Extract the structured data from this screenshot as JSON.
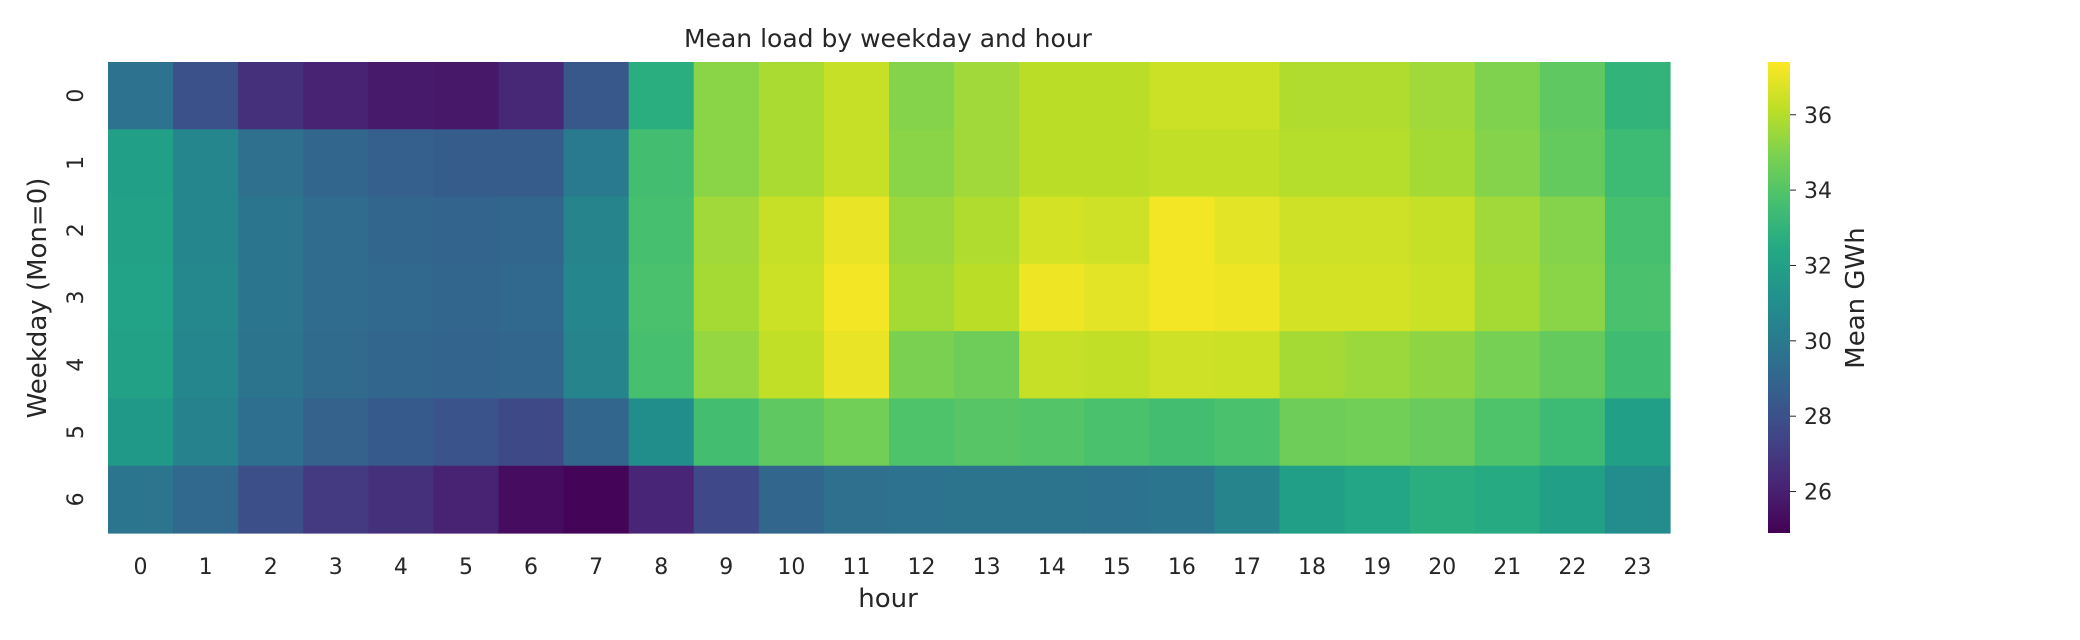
{
  "chart_data": {
    "type": "heatmap",
    "title": "Mean load by weekday and hour",
    "xlabel": "hour",
    "ylabel": "Weekday (Mon=0)",
    "x": [
      "0",
      "1",
      "2",
      "3",
      "4",
      "5",
      "6",
      "7",
      "8",
      "9",
      "10",
      "11",
      "12",
      "13",
      "14",
      "15",
      "16",
      "17",
      "18",
      "19",
      "20",
      "21",
      "22",
      "23"
    ],
    "y": [
      "0",
      "1",
      "2",
      "3",
      "4",
      "5",
      "6"
    ],
    "values": [
      [
        29.6,
        28.0,
        26.6,
        26.1,
        25.8,
        25.7,
        26.3,
        28.3,
        32.7,
        35.2,
        35.8,
        36.3,
        35.1,
        35.6,
        36.1,
        36.1,
        36.4,
        36.4,
        35.9,
        35.9,
        35.6,
        35.0,
        34.3,
        33.0
      ],
      [
        31.9,
        30.6,
        29.5,
        29.0,
        28.7,
        28.5,
        28.5,
        30.0,
        33.6,
        35.2,
        35.8,
        36.3,
        35.2,
        35.6,
        36.1,
        36.1,
        36.2,
        36.2,
        36.0,
        36.0,
        35.7,
        35.1,
        34.4,
        33.4
      ],
      [
        32.0,
        30.6,
        29.8,
        29.3,
        29.0,
        28.9,
        29.0,
        30.5,
        33.7,
        35.6,
        36.3,
        37.0,
        35.5,
        35.9,
        36.6,
        36.5,
        37.2,
        36.9,
        36.5,
        36.5,
        36.3,
        35.6,
        35.1,
        33.7
      ],
      [
        32.1,
        30.7,
        29.8,
        29.3,
        29.1,
        29.0,
        29.1,
        30.6,
        33.8,
        35.7,
        36.4,
        37.2,
        35.7,
        36.1,
        37.1,
        36.9,
        37.2,
        37.1,
        36.6,
        36.6,
        36.4,
        35.7,
        35.2,
        33.8
      ],
      [
        32.0,
        30.6,
        29.7,
        29.2,
        29.0,
        28.9,
        29.0,
        30.5,
        33.7,
        35.4,
        36.2,
        37.0,
        34.9,
        34.6,
        36.3,
        36.2,
        36.5,
        36.4,
        35.7,
        35.5,
        35.3,
        34.8,
        34.4,
        33.5
      ],
      [
        31.6,
        30.4,
        29.4,
        28.8,
        28.4,
        28.1,
        27.7,
        29.0,
        31.0,
        33.6,
        34.3,
        34.7,
        33.9,
        34.1,
        34.0,
        33.8,
        33.6,
        33.8,
        34.6,
        34.7,
        34.5,
        33.9,
        33.4,
        31.9
      ],
      [
        29.8,
        29.1,
        27.9,
        27.0,
        26.6,
        26.1,
        25.3,
        25.0,
        26.2,
        27.6,
        29.0,
        29.5,
        29.6,
        29.7,
        29.7,
        29.6,
        29.8,
        30.5,
        31.9,
        32.3,
        32.7,
        32.5,
        31.9,
        30.9
      ]
    ],
    "colorbar": {
      "label": "Mean GWh",
      "vmin": 24.9,
      "vmax": 37.4,
      "ticks": [
        26,
        28,
        30,
        32,
        34,
        36
      ]
    },
    "colormap": "viridis",
    "grid": false
  }
}
